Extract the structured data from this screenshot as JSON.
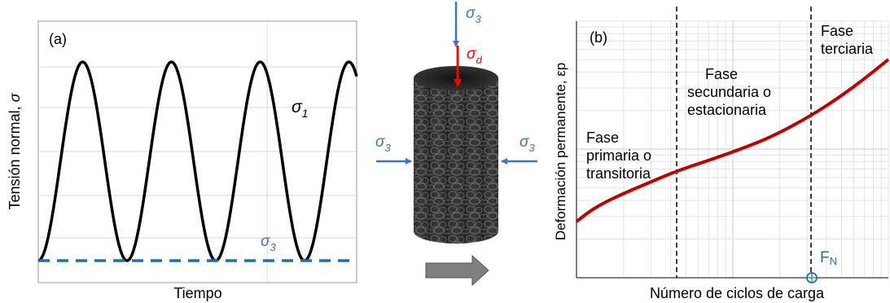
{
  "panel_a": {
    "label": "(a)",
    "ylabel_text": "Tensión normal, ",
    "ylabel_symbol": "σ",
    "xlabel": "Tiempo",
    "sigma1_base": "σ",
    "sigma1_sub": "1",
    "sigma3_base": "σ",
    "sigma3_sub": "3",
    "wave_cycles": 4,
    "colors": {
      "wave": "#000000",
      "confining": "#1f6fb5"
    }
  },
  "specimen": {
    "top_stress_base": "σ",
    "top_stress_sub": "3",
    "deviator_base": "σ",
    "deviator_sub": "d",
    "left_stress_base": "σ",
    "left_stress_sub": "3",
    "right_stress_base": "σ",
    "right_stress_sub": "3",
    "colors": {
      "confining": "#4472c4",
      "deviator": "#ff0000",
      "body": "#2a2a2a",
      "arrow": "#7f7f7f"
    }
  },
  "panel_b": {
    "label": "(b)",
    "ylabel": "Deformación permanente, εp",
    "xlabel": "Número de ciclos de carga",
    "phase1": [
      "Fase",
      "primaria o",
      "transitoria"
    ],
    "phase2": [
      "Fase",
      "secundaria o",
      "estacionaria"
    ],
    "phase3": [
      "Fase",
      "terciaria"
    ],
    "fn_base": "F",
    "fn_sub": "N",
    "colors": {
      "curve": "#c00000",
      "fn": "#1f6fb5"
    }
  }
}
